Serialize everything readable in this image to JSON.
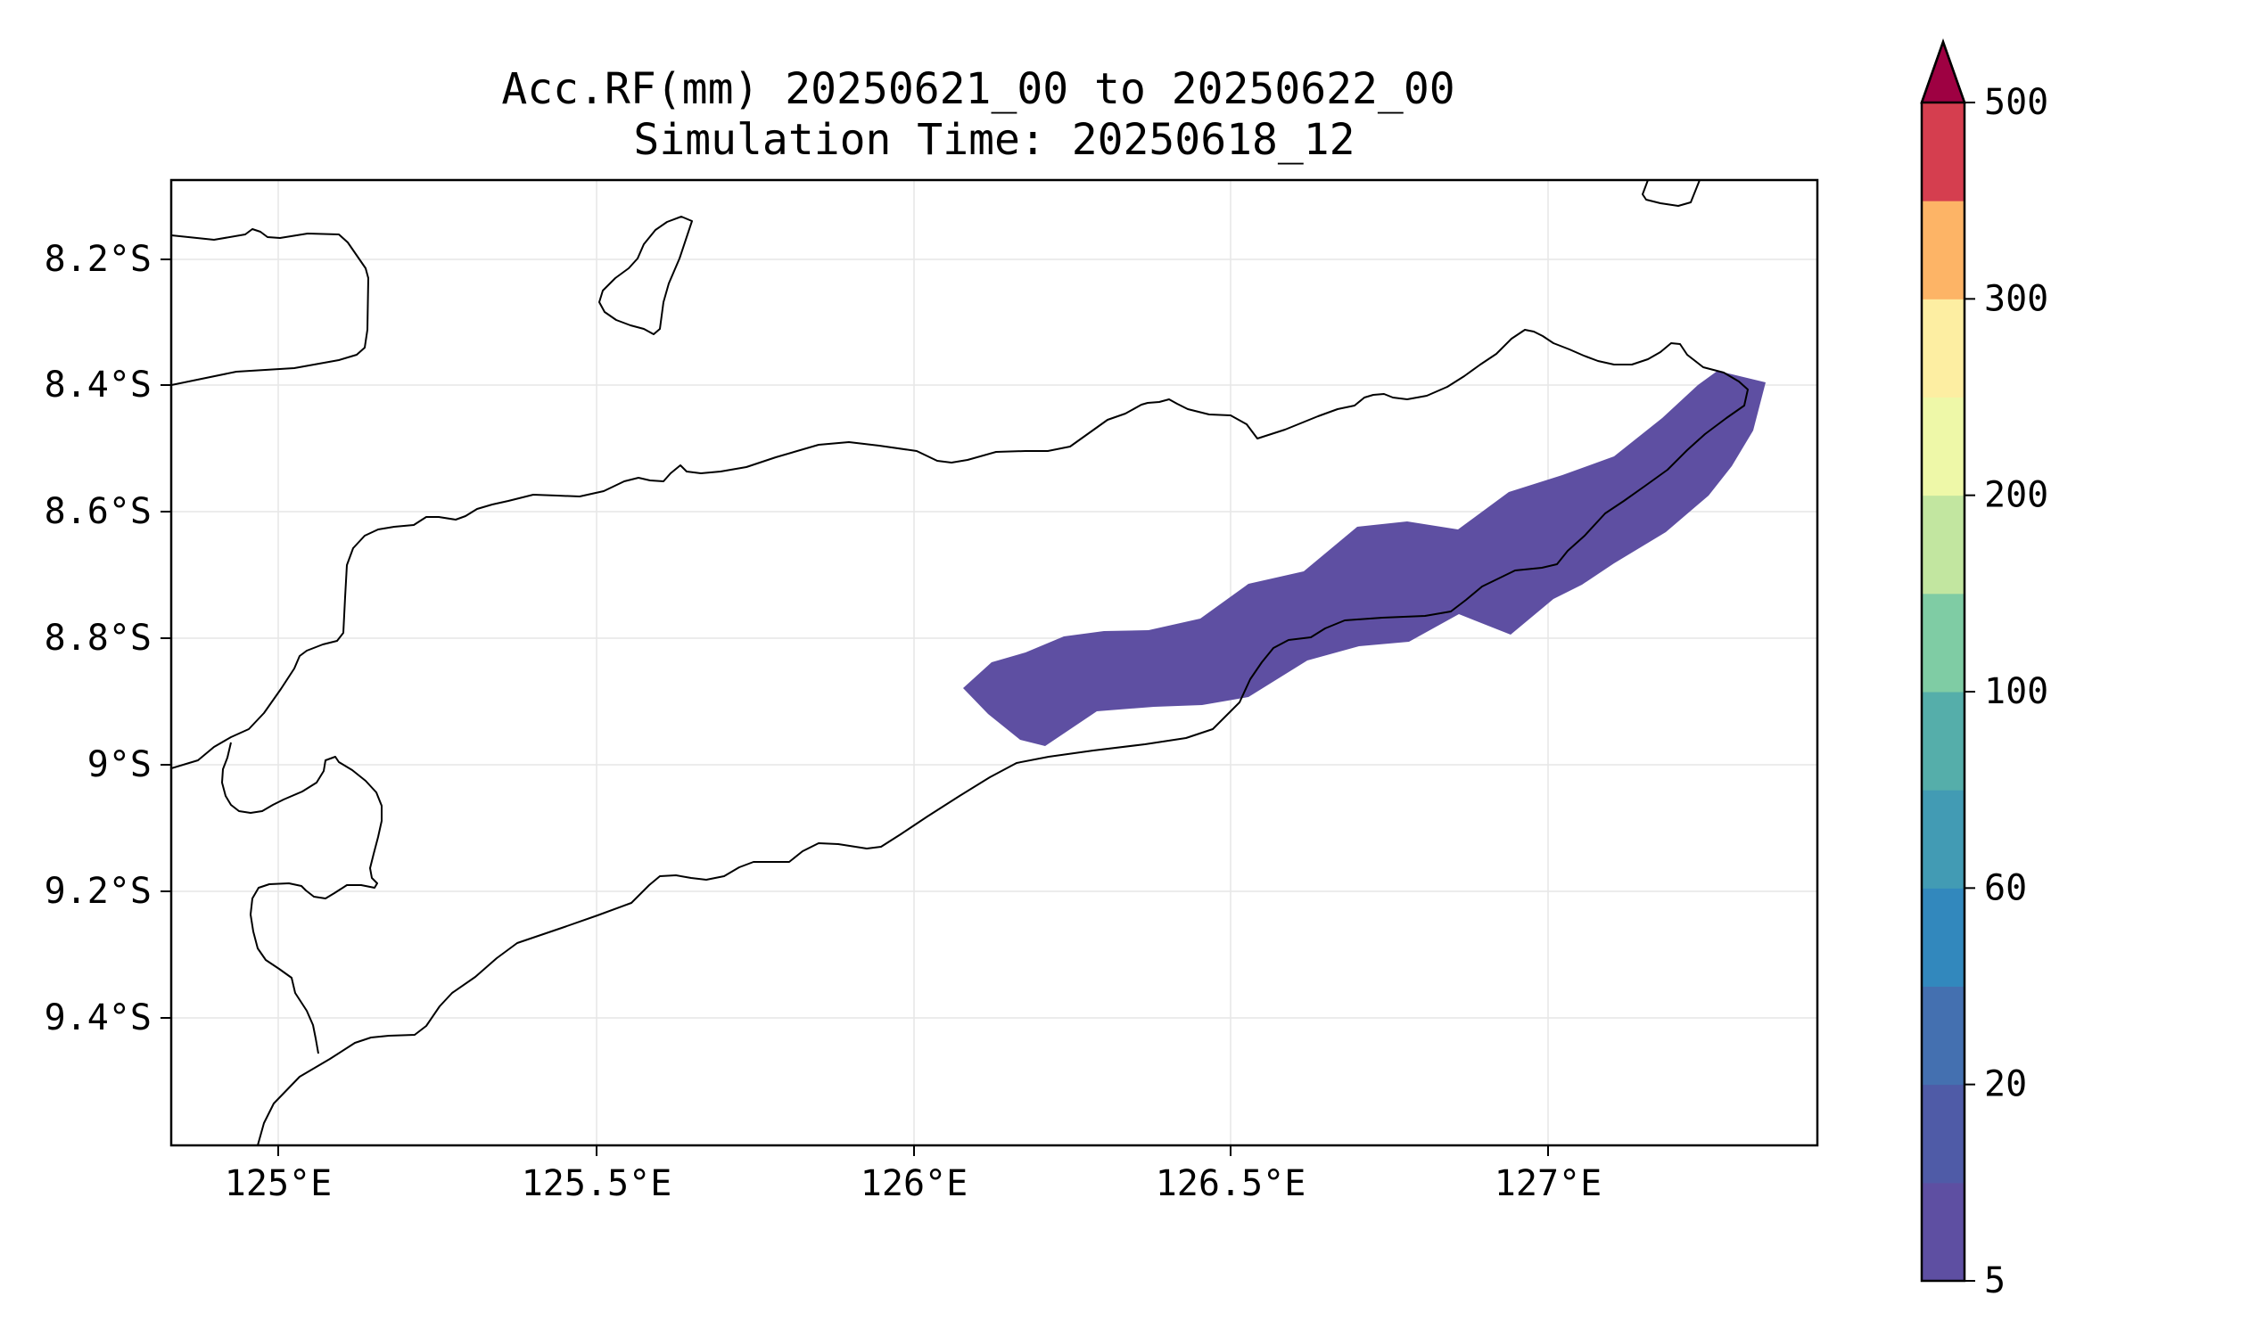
{
  "title": {
    "line1": "Acc.RF(mm) 20250621_00 to 20250622_00",
    "line2": "Simulation Time: 20250618_12"
  },
  "axes": {
    "x_ticks": [
      "125°E",
      "125.5°E",
      "126°E",
      "126.5°E",
      "127°E"
    ],
    "y_ticks": [
      "8.2°S",
      "8.4°S",
      "8.6°S",
      "8.8°S",
      "9°S",
      "9.2°S",
      "9.4°S"
    ],
    "xlim": [
      124.83,
      127.42
    ],
    "ylim": [
      -9.58,
      -8.07
    ]
  },
  "rain_field": {
    "class_label": "5–10 mm",
    "color": "#5e4fa2"
  },
  "colorbar": {
    "tick_labels": [
      "500",
      "300",
      "200",
      "100",
      "60",
      "20",
      "5"
    ],
    "extend": "max",
    "extend_color": "#9e0142",
    "colors": [
      "#5e4fa2",
      "#4f5ba7",
      "#4470b0",
      "#3288bd",
      "#429bb4",
      "#55aeaa",
      "#7fcca4",
      "#c2e6a0",
      "#eef8a8",
      "#fdeea2",
      "#fdb466",
      "#d53e4f"
    ]
  }
}
